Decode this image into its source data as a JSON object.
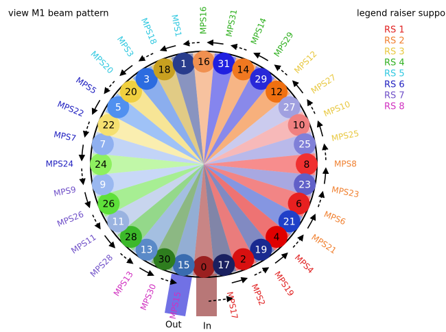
{
  "title": "view M1 beam pattern",
  "legend": {
    "title": "legend raiser support",
    "items": [
      {
        "label": "RS 1",
        "color": "#e02020"
      },
      {
        "label": "RS 2",
        "color": "#f08030"
      },
      {
        "label": "RS 3",
        "color": "#e8c840"
      },
      {
        "label": "RS 4",
        "color": "#30b020"
      },
      {
        "label": "RS 5",
        "color": "#30c8e0"
      },
      {
        "label": "RS 6",
        "color": "#2020c0"
      },
      {
        "label": "RS 7",
        "color": "#7050c8"
      },
      {
        "label": "RS 8",
        "color": "#d030c0"
      }
    ]
  },
  "ports": {
    "out": "Out",
    "in": "In"
  },
  "beams": [
    {
      "number": "0",
      "color": "#9b2020",
      "text_color": "#000"
    },
    {
      "number": "15",
      "color": "#3a6cb0",
      "text_color": "#fff",
      "mps": "MPS15",
      "mps_color": "#d030c0"
    },
    {
      "number": "30",
      "color": "#2e7d1e",
      "text_color": "#000",
      "mps": "MPS30",
      "mps_color": "#d030c0"
    },
    {
      "number": "13",
      "color": "#5a8ac8",
      "text_color": "#fff",
      "mps": "MPS13",
      "mps_color": "#d030c0"
    },
    {
      "number": "28",
      "color": "#3cb82a",
      "text_color": "#000",
      "mps": "MPS28",
      "mps_color": "#7050c8"
    },
    {
      "number": "11",
      "color": "#9ab3e0",
      "text_color": "#fff",
      "mps": "MPS11",
      "mps_color": "#7050c8"
    },
    {
      "number": "26",
      "color": "#5ee03a",
      "text_color": "#000",
      "mps": "MPS26",
      "mps_color": "#7050c8"
    },
    {
      "number": "9",
      "color": "#9ab8f0",
      "text_color": "#fff",
      "mps": "MPS9",
      "mps_color": "#7050c8"
    },
    {
      "number": "24",
      "color": "#8ef060",
      "text_color": "#000",
      "mps": "MPS24",
      "mps_color": "#2020c0"
    },
    {
      "number": "7",
      "color": "#8fb0f0",
      "text_color": "#fff",
      "mps": "MPS7",
      "mps_color": "#2020c0"
    },
    {
      "number": "22",
      "color": "#f5e070",
      "text_color": "#000",
      "mps": "MPS22",
      "mps_color": "#2020c0"
    },
    {
      "number": "5",
      "color": "#5090f0",
      "text_color": "#fff",
      "mps": "MPS5",
      "mps_color": "#2020c0"
    },
    {
      "number": "20",
      "color": "#f0d040",
      "text_color": "#000",
      "mps": "MPS20",
      "mps_color": "#30c8e0"
    },
    {
      "number": "3",
      "color": "#2c6ce0",
      "text_color": "#fff",
      "mps": "MPS3",
      "mps_color": "#30c8e0"
    },
    {
      "number": "18",
      "color": "#c8a020",
      "text_color": "#000",
      "mps": "MPS18",
      "mps_color": "#30c8e0"
    },
    {
      "number": "1",
      "color": "#283c8c",
      "text_color": "#fff",
      "mps": "MPS1",
      "mps_color": "#30c8e0"
    },
    {
      "number": "16",
      "color": "#f09050",
      "text_color": "#000",
      "mps": "MPS16",
      "mps_color": "#30b020"
    },
    {
      "number": "31",
      "color": "#2020e0",
      "text_color": "#fff",
      "mps": "MPS31",
      "mps_color": "#30b020"
    },
    {
      "number": "14",
      "color": "#f07820",
      "text_color": "#000",
      "mps": "MPS14",
      "mps_color": "#30b020"
    },
    {
      "number": "29",
      "color": "#2828d8",
      "text_color": "#fff",
      "mps": "MPS29",
      "mps_color": "#30b020"
    },
    {
      "number": "12",
      "color": "#f07010",
      "text_color": "#000",
      "mps": "MPS12",
      "mps_color": "#e8c840"
    },
    {
      "number": "27",
      "color": "#a0a0e0",
      "text_color": "#fff",
      "mps": "MPS27",
      "mps_color": "#e8c840"
    },
    {
      "number": "10",
      "color": "#f08080",
      "text_color": "#000",
      "mps": "MPS10",
      "mps_color": "#e8c840"
    },
    {
      "number": "25",
      "color": "#8080d8",
      "text_color": "#fff",
      "mps": "MPS25",
      "mps_color": "#e8c840"
    },
    {
      "number": "8",
      "color": "#f03030",
      "text_color": "#000",
      "mps": "MPS8",
      "mps_color": "#f08030"
    },
    {
      "number": "23",
      "color": "#6060c8",
      "text_color": "#fff",
      "mps": "MPS23",
      "mps_color": "#f08030"
    },
    {
      "number": "6",
      "color": "#e82020",
      "text_color": "#000",
      "mps": "MPS6",
      "mps_color": "#f08030"
    },
    {
      "number": "21",
      "color": "#2040c8",
      "text_color": "#fff",
      "mps": "MPS21",
      "mps_color": "#f08030"
    },
    {
      "number": "4",
      "color": "#e00000",
      "text_color": "#000",
      "mps": "MPS4",
      "mps_color": "#e02020"
    },
    {
      "number": "19",
      "color": "#1a2a90",
      "text_color": "#fff",
      "mps": "MPS19",
      "mps_color": "#e02020"
    },
    {
      "number": "2",
      "color": "#d81010",
      "text_color": "#000",
      "mps": "MPS2",
      "mps_color": "#e02020"
    },
    {
      "number": "17",
      "color": "#1a2060",
      "text_color": "#fff",
      "mps": "MPS17",
      "mps_color": "#e02020"
    }
  ]
}
